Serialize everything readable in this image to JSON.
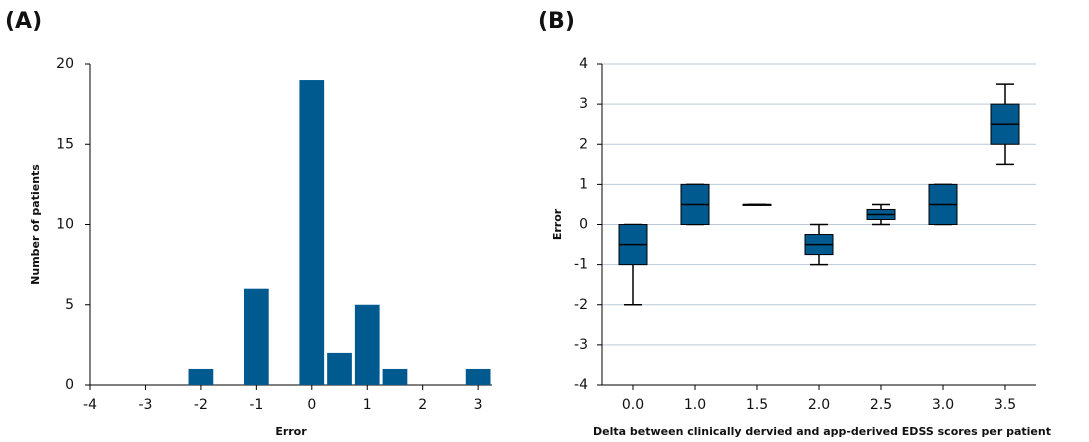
{
  "chart_data": [
    {
      "type": "histogram",
      "panel_label": "(A)",
      "x_label": "Error",
      "y_label": "Number of patients",
      "bins": [
        -2.25,
        -1.75,
        -1.25,
        -0.75,
        -0.25,
        0.25,
        0.75,
        1.25,
        1.75,
        2.25,
        2.75,
        3.25
      ],
      "counts": [
        1,
        0,
        6,
        0,
        19,
        2,
        5,
        1,
        0,
        0,
        1
      ],
      "color": "#005a8f",
      "xlim": [
        -4,
        3.25
      ],
      "xticks": [
        -4,
        -3,
        -2,
        -1,
        0,
        1,
        2,
        3
      ],
      "ylim": [
        0,
        20
      ],
      "yticks": [
        0,
        5,
        10,
        15,
        20
      ],
      "grid": false
    },
    {
      "type": "box",
      "panel_label": "(B)",
      "x_label": "Delta between clinically dervied and app-derived EDSS scores per patient",
      "y_label": "Error",
      "categories": [
        "0.0",
        "1.0",
        "1.5",
        "2.0",
        "2.5",
        "3.0",
        "3.5"
      ],
      "stats": [
        {
          "min": -2,
          "q1": -1,
          "median": -0.5,
          "q3": 0,
          "max": 0
        },
        {
          "min": 0,
          "q1": 0,
          "median": 0.5,
          "q3": 1,
          "max": 1
        },
        {
          "min": 0.5,
          "q1": 0.5,
          "median": 0.5,
          "q3": 0.5,
          "max": 0.5
        },
        {
          "min": -1,
          "q1": -0.75,
          "median": -0.5,
          "q3": -0.25,
          "max": 0
        },
        {
          "min": 0,
          "q1": 0.125,
          "median": 0.25,
          "q3": 0.375,
          "max": 0.5
        },
        {
          "min": 0,
          "q1": 0,
          "median": 0.5,
          "q3": 1,
          "max": 1
        },
        {
          "min": 1.5,
          "q1": 2,
          "median": 2.5,
          "q3": 3,
          "max": 3.5
        }
      ],
      "color": "#005a8f",
      "ylim": [
        -4,
        4
      ],
      "yticks": [
        -4,
        -3,
        -2,
        -1,
        0,
        1,
        2,
        3,
        4
      ],
      "grid": true
    }
  ]
}
